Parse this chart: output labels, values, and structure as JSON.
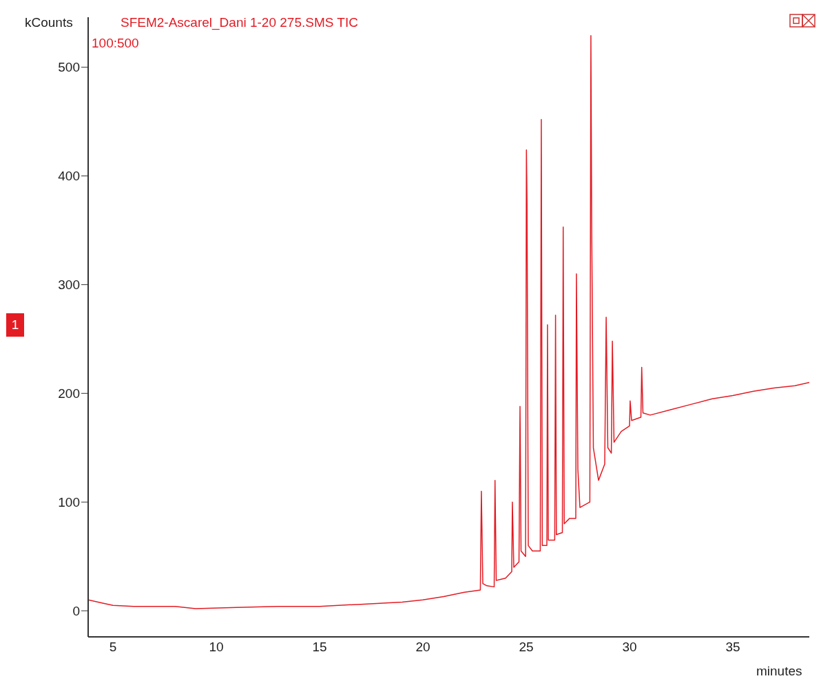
{
  "chart_data": {
    "type": "line",
    "title": "SFEM2-Ascarel_Dani 1-20 275.SMS TIC",
    "xlabel": "minutes",
    "ylabel": "kCounts",
    "annotations": [
      "100:500",
      "1"
    ],
    "xlim": [
      3.8,
      38.7
    ],
    "xticks": [
      5,
      10,
      15,
      20,
      25,
      30,
      35
    ],
    "ylim": [
      -24,
      546
    ],
    "yticks": [
      0,
      100,
      200,
      300,
      400,
      500
    ],
    "grid": false,
    "legend": false,
    "marker": "none",
    "line_style": "solid",
    "series": [
      {
        "color": "#e31b23",
        "x": [
          3.8,
          4.5,
          5,
          6,
          8,
          9,
          11,
          13,
          15,
          17,
          19,
          20,
          21,
          22,
          22.78,
          22.83,
          22.9,
          23.1,
          23.45,
          23.49,
          23.55,
          24.0,
          24.3,
          24.33,
          24.4,
          24.65,
          24.7,
          24.75,
          24.97,
          25.01,
          25.04,
          25.1,
          25.3,
          25.68,
          25.73,
          25.78,
          26.0,
          26.03,
          26.07,
          26.38,
          26.42,
          26.46,
          26.75,
          26.79,
          26.84,
          27.1,
          27.4,
          27.43,
          27.5,
          27.6,
          28.08,
          28.13,
          28.17,
          28.25,
          28.5,
          28.8,
          28.87,
          28.95,
          29.12,
          29.17,
          29.25,
          29.6,
          30.0,
          30.03,
          30.1,
          30.55,
          30.59,
          30.65,
          31,
          32,
          33,
          34,
          35,
          36,
          37,
          38,
          38.7
        ],
        "values": [
          10,
          7,
          5,
          4,
          4,
          2,
          3,
          4,
          4,
          6,
          8,
          10,
          13,
          17,
          19,
          110,
          25,
          23,
          22,
          120,
          28,
          30,
          36,
          100,
          40,
          45,
          188,
          55,
          50,
          424,
          375,
          60,
          55,
          55,
          452,
          60,
          60,
          263,
          65,
          65,
          272,
          70,
          72,
          353,
          80,
          85,
          85,
          310,
          130,
          95,
          100,
          529,
          352,
          150,
          120,
          135,
          270,
          150,
          145,
          248,
          155,
          165,
          170,
          193,
          175,
          178,
          224,
          182,
          180,
          185,
          190,
          195,
          198,
          202,
          205,
          207,
          210
        ]
      }
    ]
  }
}
